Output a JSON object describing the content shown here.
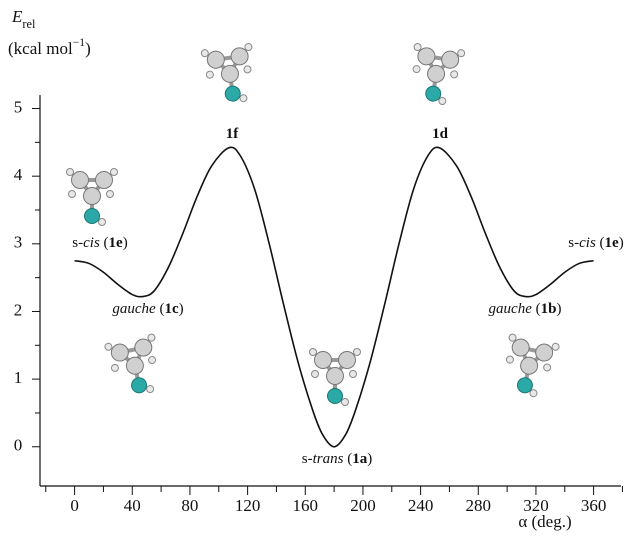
{
  "chart_data": {
    "type": "line",
    "y_label": [
      {
        "text": "E",
        "style": "italic"
      },
      {
        "text": "rel",
        "style": "sub"
      }
    ],
    "y_unit": [
      {
        "text": "(kcal mol"
      },
      {
        "text": "−1",
        "style": "sup"
      },
      {
        "text": ")"
      }
    ],
    "x_label": "α (deg.)",
    "x": [
      0,
      10,
      20,
      30,
      40,
      47,
      55,
      65,
      75,
      85,
      95,
      107,
      115,
      125,
      135,
      145,
      155,
      165,
      172,
      180,
      188,
      195,
      205,
      215,
      225,
      235,
      245,
      253,
      265,
      275,
      285,
      295,
      305,
      313,
      320,
      330,
      340,
      350,
      360
    ],
    "series": [
      {
        "color": "#111111",
        "values": [
          2.75,
          2.71,
          2.58,
          2.4,
          2.25,
          2.22,
          2.3,
          2.65,
          3.15,
          3.7,
          4.15,
          4.42,
          4.3,
          3.8,
          3.0,
          2.1,
          1.25,
          0.55,
          0.18,
          0,
          0.18,
          0.55,
          1.25,
          2.1,
          3.0,
          3.8,
          4.3,
          4.42,
          4.15,
          3.7,
          3.15,
          2.65,
          2.3,
          2.22,
          2.25,
          2.4,
          2.58,
          2.71,
          2.75
        ]
      }
    ],
    "xlim": [
      -24,
      379
    ],
    "ylim": [
      -0.58,
      5.2
    ],
    "xticks": [
      0,
      40,
      80,
      120,
      160,
      200,
      240,
      280,
      320,
      360
    ],
    "xminor_ticks": [
      -20,
      20,
      60,
      100,
      140,
      180,
      220,
      260,
      300,
      340,
      380
    ],
    "yticks": [
      0,
      1,
      2,
      3,
      4,
      5
    ],
    "yminor_ticks": [
      0.5,
      1.5,
      2.5,
      3.5,
      4.5
    ],
    "annotations": [
      [
        {
          "text": "s-"
        },
        {
          "text": "cis",
          "style": "italic"
        },
        {
          "text": " ("
        },
        {
          "text": "1e",
          "style": "bold"
        },
        {
          "text": ")"
        }
      ],
      [
        {
          "text": "gauche",
          "style": "italic"
        },
        {
          "text": " ("
        },
        {
          "text": "1c",
          "style": "bold"
        },
        {
          "text": ")"
        }
      ],
      [
        {
          "text": "1f",
          "style": "bold"
        }
      ],
      [
        {
          "text": "s-"
        },
        {
          "text": "trans",
          "style": "italic"
        },
        {
          "text": " ("
        },
        {
          "text": "1a",
          "style": "bold"
        },
        {
          "text": ")"
        }
      ],
      [
        {
          "text": "1d",
          "style": "bold"
        }
      ],
      [
        {
          "text": "gauche",
          "style": "italic"
        },
        {
          "text": " ("
        },
        {
          "text": "1b",
          "style": "bold"
        },
        {
          "text": ")"
        }
      ],
      [
        {
          "text": "s-"
        },
        {
          "text": "cis",
          "style": "italic"
        },
        {
          "text": " ("
        },
        {
          "text": "1e",
          "style": "bold"
        },
        {
          "text": ")"
        }
      ]
    ]
  }
}
